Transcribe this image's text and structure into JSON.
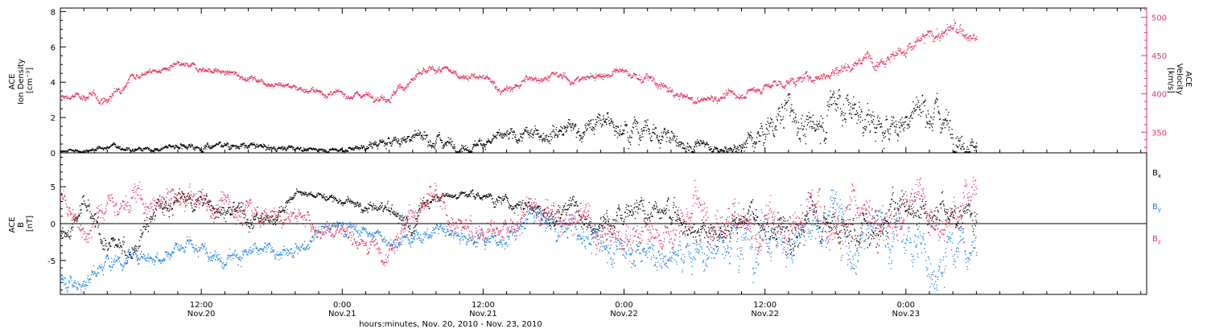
{
  "chart_data": [
    {
      "type": "scatter",
      "panel": "top",
      "left_ylabel_lines": [
        "ACE",
        "Ion Density",
        "[cm⁻³]"
      ],
      "right_ylabel_lines": [
        "ACE",
        "Velocity",
        "[km/s]"
      ],
      "left_ylim": [
        0,
        8.2
      ],
      "left_yticks": [
        0,
        2,
        4,
        6,
        8
      ],
      "right_ylim": [
        323,
        512
      ],
      "right_yticks": [
        350,
        400,
        450,
        500
      ],
      "series": [
        {
          "axis": "left",
          "color": "#000000",
          "x_hours": [
            0,
            2,
            4,
            6,
            8,
            10,
            12,
            14,
            16,
            18,
            20,
            22,
            24,
            26,
            28,
            30,
            32,
            34,
            36,
            38,
            40,
            42,
            44,
            46,
            48,
            50,
            52,
            54,
            56,
            58,
            60,
            62,
            64,
            66,
            68,
            70,
            72,
            74,
            76,
            78
          ],
          "y": [
            0.1,
            0.1,
            0.4,
            0.3,
            0.2,
            0.5,
            0.4,
            0.5,
            0.4,
            0.3,
            0.3,
            0.2,
            0.2,
            0.4,
            0.6,
            1.0,
            0.8,
            0.5,
            0.7,
            0.8,
            1.0,
            1.5,
            1.4,
            1.6,
            1.8,
            1.3,
            0.8,
            0.5,
            0.2,
            0.4,
            1.2,
            2.5,
            1.0,
            3.2,
            2.4,
            1.1,
            2.0,
            2.8,
            1.5,
            0.6
          ],
          "volatility": [
            0.1,
            0.1,
            0.15,
            0.15,
            0.12,
            0.2,
            0.2,
            0.2,
            0.18,
            0.15,
            0.15,
            0.12,
            0.12,
            0.2,
            0.3,
            0.4,
            0.4,
            0.3,
            0.3,
            0.35,
            0.35,
            0.5,
            0.5,
            0.6,
            0.6,
            0.6,
            0.6,
            0.4,
            0.2,
            0.5,
            0.8,
            1.0,
            0.9,
            1.1,
            1.0,
            0.8,
            0.9,
            1.0,
            0.8,
            0.6
          ]
        },
        {
          "axis": "right",
          "color": "#e8345e",
          "x_hours": [
            0,
            2,
            4,
            6,
            8,
            10,
            12,
            14,
            16,
            18,
            20,
            22,
            24,
            26,
            28,
            30,
            32,
            34,
            36,
            38,
            40,
            42,
            44,
            46,
            48,
            50,
            52,
            54,
            56,
            58,
            60,
            62,
            64,
            66,
            68,
            70,
            72,
            74,
            76,
            78
          ],
          "y": [
            395,
            398,
            392,
            425,
            430,
            436,
            434,
            428,
            422,
            415,
            410,
            402,
            399,
            400,
            397,
            420,
            432,
            426,
            420,
            403,
            421,
            424,
            418,
            426,
            428,
            420,
            402,
            390,
            397,
            400,
            410,
            416,
            422,
            430,
            445,
            450,
            458,
            475,
            485,
            470
          ],
          "volatility": [
            4,
            5,
            6,
            4,
            4,
            4,
            4,
            4,
            4,
            4,
            4,
            4,
            4,
            4,
            5,
            6,
            5,
            4,
            5,
            6,
            5,
            5,
            5,
            5,
            5,
            6,
            6,
            5,
            5,
            5,
            6,
            6,
            6,
            7,
            8,
            8,
            8,
            10,
            10,
            8
          ]
        }
      ]
    },
    {
      "type": "scatter",
      "panel": "bottom",
      "left_ylabel_lines": [
        "ACE",
        "B",
        "[nT]"
      ],
      "ylim": [
        -9.6,
        9.6
      ],
      "yticks": [
        -5,
        0,
        5
      ],
      "zero_line": true,
      "series": [
        {
          "name": "Bx",
          "color": "#000000",
          "legend_base": "B",
          "legend_sub": "x",
          "x_hours": [
            0,
            2,
            4,
            6,
            8,
            10,
            12,
            14,
            16,
            18,
            20,
            22,
            24,
            26,
            28,
            30,
            32,
            34,
            36,
            38,
            40,
            42,
            44,
            46,
            48,
            50,
            52,
            54,
            56,
            58,
            60,
            62,
            64,
            66,
            68,
            70,
            72,
            74,
            76,
            78
          ],
          "y": [
            -2,
            2,
            -3,
            -4,
            1,
            3,
            3,
            2,
            1,
            1,
            4,
            4,
            3,
            2,
            2,
            0,
            4,
            4,
            4,
            3,
            3,
            1,
            2,
            1,
            0,
            2,
            1,
            0,
            -2,
            1,
            0,
            -2,
            1,
            1,
            -1,
            1,
            2,
            2,
            2,
            1
          ],
          "volatility": [
            1.2,
            1.5,
            1.6,
            1.6,
            1.6,
            1.5,
            1.4,
            1.4,
            1.3,
            1.2,
            0.5,
            0.5,
            0.6,
            0.8,
            1.0,
            1.5,
            0.6,
            0.6,
            0.6,
            1.0,
            1.2,
            1.6,
            1.6,
            1.8,
            1.8,
            1.8,
            1.8,
            1.8,
            2.0,
            2.2,
            2.4,
            2.4,
            2.4,
            2.4,
            2.4,
            2.4,
            2.4,
            2.4,
            2.2,
            2.0
          ]
        },
        {
          "name": "By",
          "color": "#1a82e6",
          "legend_base": "B",
          "legend_sub": "y",
          "x_hours": [
            0,
            2,
            4,
            6,
            8,
            10,
            12,
            14,
            16,
            18,
            20,
            22,
            24,
            26,
            28,
            30,
            32,
            34,
            36,
            38,
            40,
            42,
            44,
            46,
            48,
            50,
            52,
            54,
            56,
            58,
            60,
            62,
            64,
            66,
            68,
            70,
            72,
            74,
            76,
            78
          ],
          "y": [
            -7,
            -8,
            -5,
            -4,
            -4,
            -3,
            -4,
            -4,
            -4,
            -4,
            -4,
            0,
            0,
            -1,
            -2,
            -2,
            -1,
            -1,
            -2,
            -2,
            1,
            0,
            -1,
            -2,
            -3,
            -4,
            -5,
            -3,
            -3,
            -1,
            0,
            -2,
            -3,
            2,
            -3,
            0,
            -2,
            -4,
            -3,
            -3
          ],
          "volatility": [
            1.0,
            1.2,
            1.2,
            1.0,
            1.0,
            1.0,
            1.0,
            1.0,
            1.0,
            1.0,
            1.0,
            1.0,
            1.0,
            0.8,
            0.8,
            1.0,
            1.0,
            1.0,
            1.0,
            1.2,
            1.5,
            1.6,
            1.8,
            1.8,
            2.0,
            2.0,
            2.0,
            2.5,
            2.8,
            3.0,
            3.0,
            3.0,
            3.0,
            3.0,
            3.0,
            3.0,
            3.0,
            3.0,
            2.5,
            2.2
          ]
        },
        {
          "name": "Bz",
          "color": "#e8345e",
          "legend_base": "B",
          "legend_sub": "z",
          "x_hours": [
            0,
            2,
            4,
            6,
            8,
            10,
            12,
            14,
            16,
            18,
            20,
            22,
            24,
            26,
            28,
            30,
            32,
            34,
            36,
            38,
            40,
            42,
            44,
            46,
            48,
            50,
            52,
            54,
            56,
            58,
            60,
            62,
            64,
            66,
            68,
            70,
            72,
            74,
            76,
            78
          ],
          "y": [
            4,
            -1,
            2,
            3,
            2,
            3,
            3,
            2,
            2,
            1,
            1,
            -1,
            -1,
            -2,
            -3,
            2,
            3,
            -1,
            -1,
            -2,
            2,
            1,
            1,
            -1,
            -1,
            -2,
            -1,
            2,
            -2,
            1,
            -1,
            0,
            3,
            -1,
            4,
            1,
            2,
            3,
            2,
            3
          ],
          "volatility": [
            1.5,
            1.6,
            1.8,
            1.8,
            1.8,
            1.6,
            1.6,
            1.6,
            1.5,
            1.2,
            1.2,
            1.4,
            1.2,
            1.2,
            1.2,
            1.8,
            1.8,
            1.8,
            1.8,
            1.8,
            2.0,
            2.0,
            2.2,
            2.2,
            2.4,
            2.4,
            2.6,
            2.8,
            3.0,
            3.0,
            3.0,
            3.0,
            3.0,
            3.0,
            3.0,
            3.0,
            3.0,
            3.0,
            2.8,
            2.5
          ]
        }
      ]
    }
  ],
  "x_axis": {
    "range_hours": [
      0,
      92.5
    ],
    "major_ticks_hours": [
      12,
      24,
      36,
      48,
      60,
      72
    ],
    "minor_tick_step_hours": 2,
    "tick_labels": [
      {
        "time": "12:00",
        "date": "Nov.20"
      },
      {
        "time": "0:00",
        "date": "Nov.21"
      },
      {
        "time": "12:00",
        "date": "Nov.21"
      },
      {
        "time": "0:00",
        "date": "Nov.22"
      },
      {
        "time": "12:00",
        "date": "Nov.22"
      },
      {
        "time": "0:00",
        "date": "Nov.23"
      }
    ],
    "xlabel": "hours:minutes, Nov. 20, 2010 - Nov. 23, 2010"
  }
}
